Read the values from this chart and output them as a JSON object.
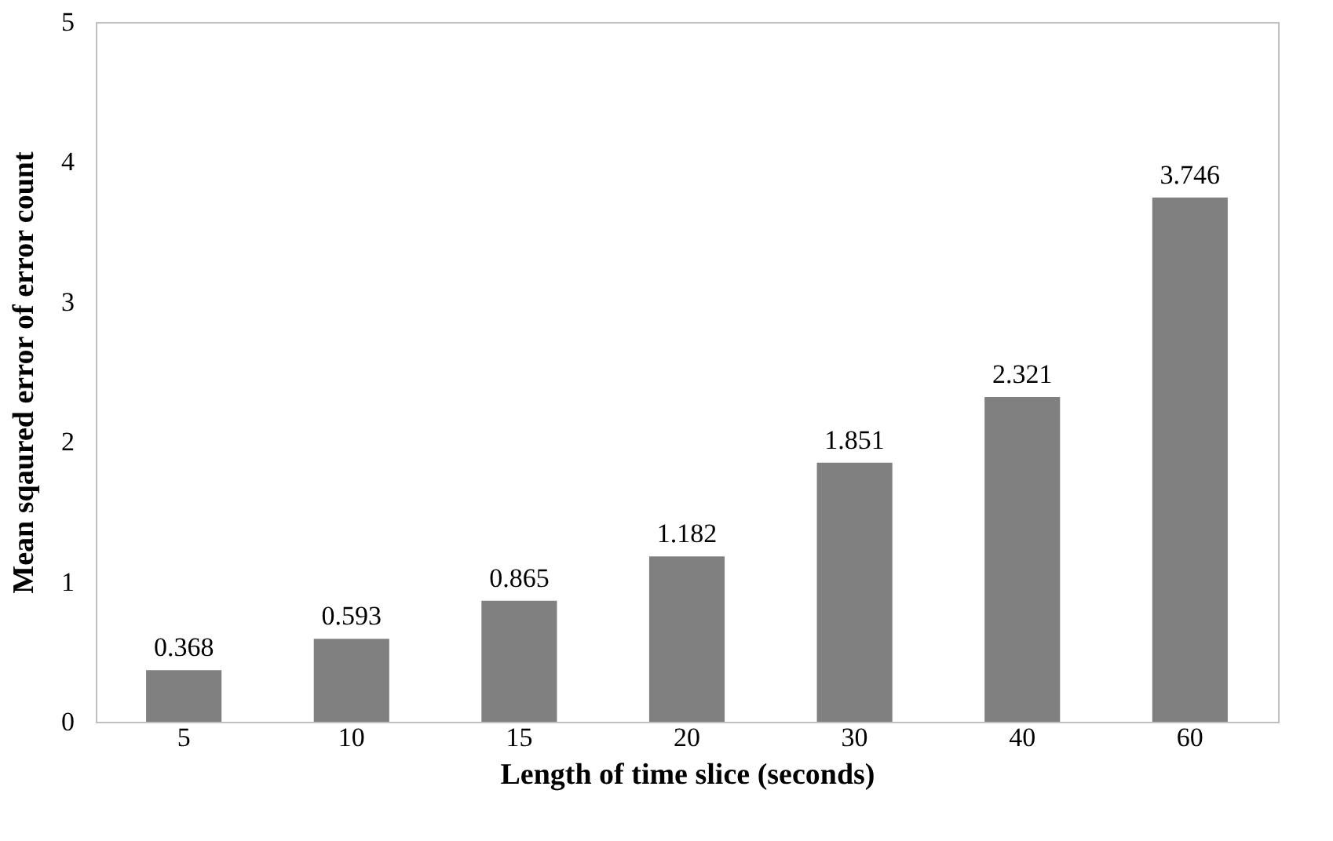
{
  "chart_data": {
    "type": "bar",
    "xlabel": "Length of time slice (seconds)",
    "ylabel": "Mean sqaured error of error count",
    "categories": [
      "5",
      "10",
      "15",
      "20",
      "30",
      "40",
      "60"
    ],
    "values": [
      0.368,
      0.593,
      0.865,
      1.182,
      1.851,
      2.321,
      3.746
    ],
    "color": "#808080",
    "ylim": [
      0,
      5
    ],
    "yticks": [
      0,
      1,
      2,
      3,
      4,
      5
    ],
    "grid": false,
    "data_labels": true
  }
}
